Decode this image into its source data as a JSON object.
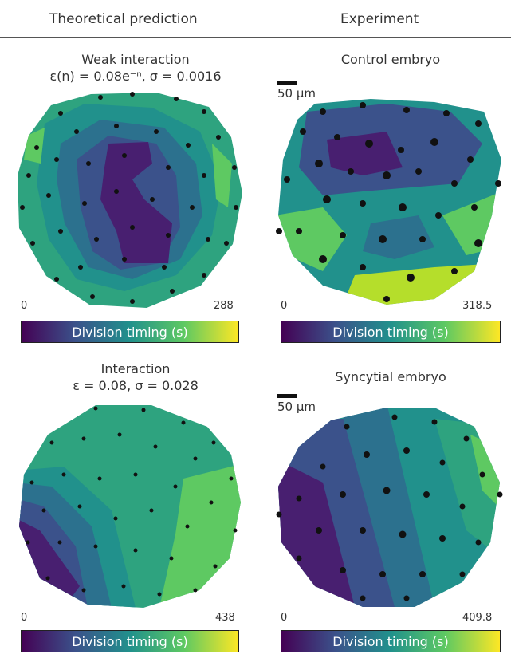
{
  "headers": {
    "left": "Theoretical prediction",
    "right": "Experiment"
  },
  "panels": [
    {
      "title": "Weak interaction",
      "subtitle": "ε(n) = 0.08e⁻ⁿ, σ = 0.0016",
      "scale_label": "",
      "min": "0",
      "max": "288",
      "colorbar_label": "Division timing (s)"
    },
    {
      "title": "Control embryo",
      "subtitle": "",
      "scale_label": "50 µm",
      "min": "0",
      "max": "318.5",
      "colorbar_label": "Division timing (s)"
    },
    {
      "title": "Interaction",
      "subtitle": "ε = 0.08, σ = 0.028",
      "scale_label": "",
      "min": "0",
      "max": "438",
      "colorbar_label": "Division timing (s)"
    },
    {
      "title": "Syncytial embryo",
      "subtitle": "",
      "scale_label": "50 µm",
      "min": "0",
      "max": "409.8",
      "colorbar_label": "Division timing (s)"
    }
  ],
  "colors": {
    "viridis_dark": "#440154",
    "viridis_blue": "#3b528b",
    "viridis_teal": "#21918c",
    "viridis_green": "#5ec962",
    "viridis_yellow": "#fde725",
    "nucleus": "#111111"
  }
}
